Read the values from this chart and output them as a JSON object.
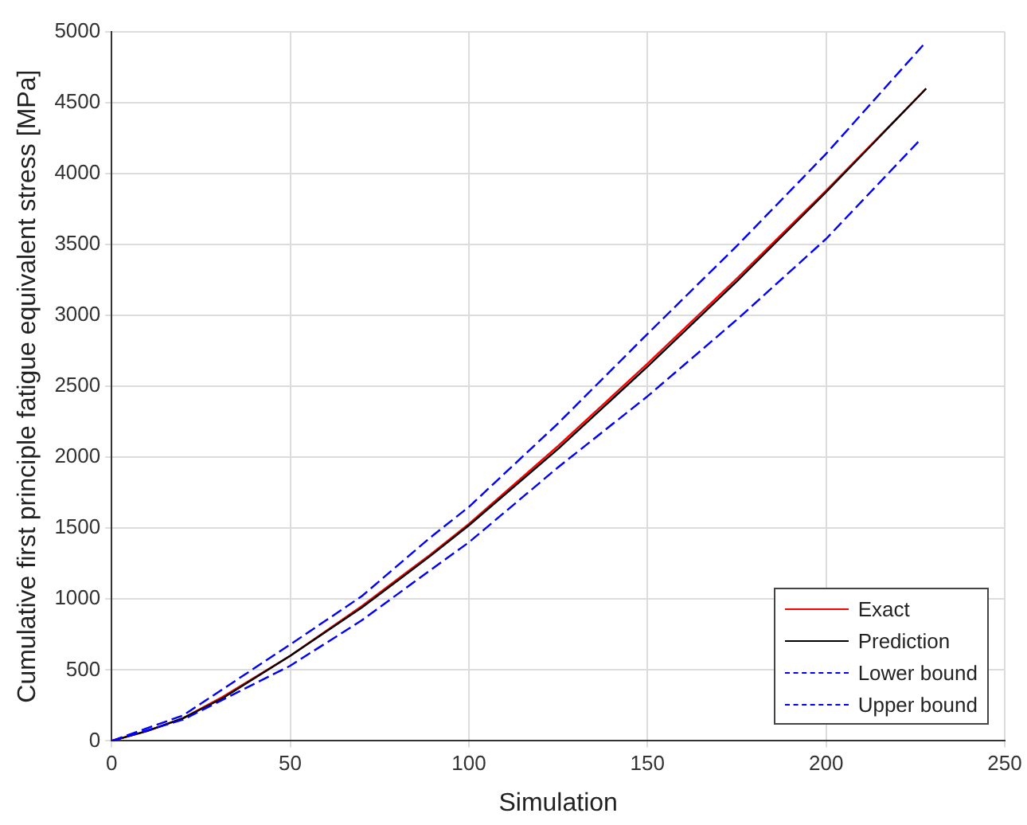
{
  "chart_data": {
    "type": "line",
    "xlabel": "Simulation",
    "ylabel": "Cumulative first principle fatigue equivalent stress [MPa]",
    "xlim": [
      0,
      250
    ],
    "xticks": [
      0,
      50,
      100,
      150,
      200,
      250
    ],
    "ylim": [
      0,
      5000
    ],
    "yticks": [
      0,
      500,
      1000,
      1500,
      2000,
      2500,
      3000,
      3500,
      4000,
      4500,
      5000
    ],
    "grid": true,
    "legend": "bottom right",
    "marker": "none",
    "series": [
      {
        "name": "Exact",
        "color": "#ff0000",
        "line_style": "solid",
        "x": [
          0,
          10,
          20,
          31,
          50,
          70,
          89,
          100,
          125,
          150,
          175,
          200,
          228
        ],
        "values": [
          0,
          70,
          160,
          310,
          600,
          950,
          1310,
          1530,
          2080,
          2660,
          3260,
          3880,
          4600
        ]
      },
      {
        "name": "Prediction",
        "color": "#000000",
        "line_style": "solid",
        "x": [
          0,
          10,
          20,
          31,
          50,
          70,
          89,
          100,
          125,
          150,
          175,
          200,
          228
        ],
        "values": [
          0,
          70,
          160,
          300,
          600,
          940,
          1300,
          1520,
          2060,
          2640,
          3240,
          3870,
          4600
        ]
      },
      {
        "name": "Lower bound",
        "color": "#0000ff",
        "line_style": "dashed",
        "x": [
          0,
          20,
          50,
          70,
          89,
          100,
          125,
          150,
          175,
          200,
          226
        ],
        "values": [
          0,
          150,
          530,
          850,
          1200,
          1400,
          1930,
          2430,
          2970,
          3540,
          4230
        ]
      },
      {
        "name": "Upper bound",
        "color": "#0000ff",
        "line_style": "dashed",
        "x": [
          0,
          20,
          50,
          70,
          89,
          100,
          125,
          150,
          175,
          200,
          228
        ],
        "values": [
          0,
          180,
          680,
          1020,
          1430,
          1650,
          2240,
          2870,
          3490,
          4140,
          4930
        ]
      }
    ]
  }
}
